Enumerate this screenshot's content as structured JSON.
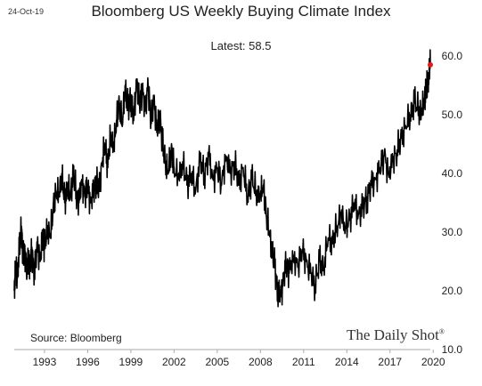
{
  "header": {
    "date": "24-Oct-19",
    "title": "Bloomberg US Weekly Buying Climate Index",
    "latest": "Latest:  58.5"
  },
  "footer": {
    "source": "Source: Bloomberg",
    "brand": "The Daily Shot",
    "brand_mark": "®"
  },
  "colors": {
    "line": "#000000",
    "latest_marker": "#e31a1c",
    "axis": "#aaaaaa"
  },
  "chart_data": {
    "type": "line",
    "title": "Bloomberg US Weekly Buying Climate Index",
    "xlabel": "",
    "ylabel": "",
    "x_ticks": [
      "1993",
      "1996",
      "1999",
      "2002",
      "2005",
      "2008",
      "2011",
      "2014",
      "2017",
      "2020"
    ],
    "x_tick_values": [
      1993,
      1996,
      1999,
      2002,
      2005,
      2008,
      2011,
      2014,
      2017,
      2020
    ],
    "y_ticks": [
      "10.0",
      "20.0",
      "30.0",
      "40.0",
      "50.0",
      "60.0"
    ],
    "y_tick_values": [
      10,
      20,
      30,
      40,
      50,
      60
    ],
    "xlim": [
      1990.9,
      2019.8
    ],
    "ylim": [
      10,
      60
    ],
    "y_axis_side": "right",
    "grid": false,
    "legend": "none",
    "latest_value": 58.5,
    "series": [
      {
        "x": [
          1990.9,
          1991.0,
          1991.1,
          1991.25,
          1991.4,
          1991.5,
          1991.6,
          1991.75,
          1991.9,
          1992.0,
          1992.1,
          1992.3,
          1992.5,
          1992.7,
          1992.9,
          1993.0,
          1993.2,
          1993.4,
          1993.6,
          1993.8,
          1994.0,
          1994.2,
          1994.4,
          1994.6,
          1994.8,
          1995.0,
          1995.2,
          1995.4,
          1995.6,
          1995.8,
          1996.0,
          1996.2,
          1996.4,
          1996.6,
          1996.8,
          1997.0,
          1997.2,
          1997.4,
          1997.6,
          1997.8,
          1998.0,
          1998.2,
          1998.4,
          1998.6,
          1998.8,
          1999.0,
          1999.2,
          1999.4,
          1999.6,
          1999.8,
          2000.0,
          2000.2,
          2000.4,
          2000.6,
          2000.8,
          2001.0,
          2001.2,
          2001.4,
          2001.6,
          2001.8,
          2002.0,
          2002.3,
          2002.6,
          2002.9,
          2003.2,
          2003.5,
          2003.8,
          2004.1,
          2004.4,
          2004.7,
          2005.0,
          2005.3,
          2005.6,
          2005.9,
          2006.2,
          2006.5,
          2006.8,
          2007.1,
          2007.4,
          2007.7,
          2008.0,
          2008.2,
          2008.4,
          2008.6,
          2008.8,
          2009.0,
          2009.2,
          2009.4,
          2009.6,
          2009.8,
          2010.0,
          2010.3,
          2010.6,
          2010.9,
          2011.2,
          2011.5,
          2011.8,
          2012.1,
          2012.4,
          2012.7,
          2013.0,
          2013.3,
          2013.6,
          2013.9,
          2014.2,
          2014.5,
          2014.8,
          2015.1,
          2015.4,
          2015.7,
          2016.0,
          2016.3,
          2016.6,
          2016.9,
          2017.2,
          2017.5,
          2017.8,
          2018.1,
          2018.4,
          2018.7,
          2019.0,
          2019.2,
          2019.4,
          2019.5,
          2019.6,
          2019.7,
          2019.8
        ],
        "y": [
          20,
          24,
          22,
          27,
          31,
          25,
          28,
          23,
          26,
          24,
          27,
          23,
          28,
          25,
          30,
          27,
          31,
          29,
          34,
          37,
          36,
          40,
          35,
          38,
          36,
          40,
          37,
          35,
          39,
          36,
          38,
          35,
          37,
          39,
          37,
          42,
          45,
          41,
          47,
          44,
          49,
          52,
          48,
          55,
          51,
          53,
          49,
          56,
          52,
          54,
          51,
          55,
          49,
          53,
          47,
          50,
          45,
          42,
          40,
          44,
          41,
          39,
          42,
          38,
          40,
          37,
          42,
          40,
          43,
          39,
          41,
          38,
          43,
          40,
          42,
          38,
          41,
          36,
          39,
          37,
          36,
          38,
          33,
          30,
          27,
          24,
          20,
          19,
          22,
          25,
          23,
          26,
          24,
          27,
          25,
          23,
          21,
          25,
          24,
          29,
          28,
          31,
          33,
          31,
          32,
          35,
          33,
          34,
          36,
          38,
          39,
          41,
          43,
          40,
          42,
          44,
          46,
          48,
          50,
          52,
          51,
          50,
          53,
          54,
          55,
          57,
          58.5
        ]
      }
    ]
  }
}
